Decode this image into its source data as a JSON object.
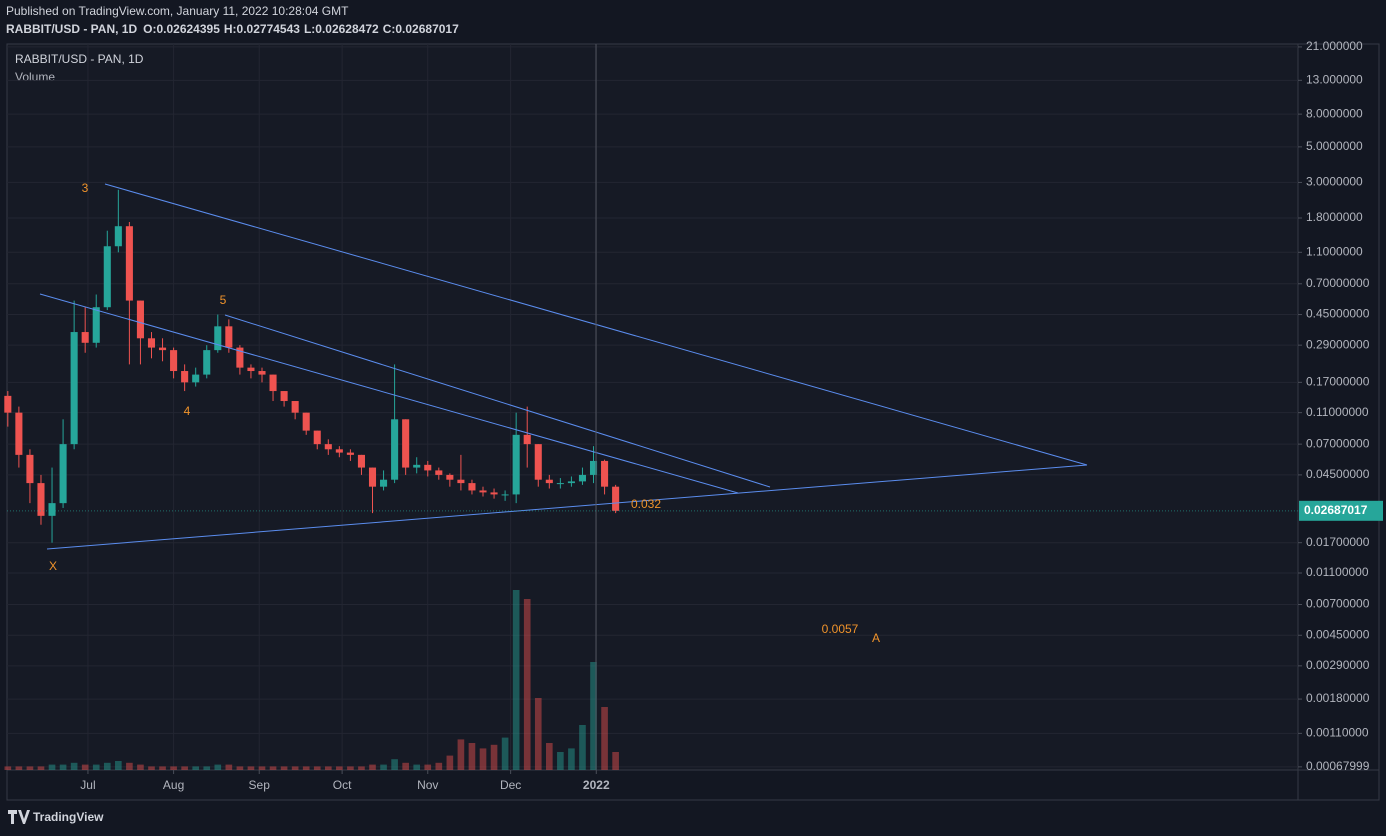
{
  "published": "Published on TradingView.com, January 11, 2022 10:28:04 GMT",
  "symbol": "RABBIT/USD - PAN, 1D",
  "ohlc": [
    {
      "label": "O:",
      "value": 0.02624395
    },
    {
      "label": "H:",
      "value": 0.02774543
    },
    {
      "label": "L:",
      "value": 0.02628472
    },
    {
      "label": "C:",
      "value": 0.02687017
    }
  ],
  "pane_title": "RABBIT/USD - PAN, 1D",
  "volume_title": "Volume",
  "brand": "TradingView",
  "chart_data": {
    "type": "candlestick",
    "log_scale": true,
    "grid": true,
    "up_color": "#26a69a",
    "down_color": "#ef5350",
    "line_color": "#5b8def",
    "annotation_color": "#f0932b",
    "x": [
      -29,
      -25,
      -21,
      -17,
      -13,
      -9,
      -5,
      -1,
      3,
      7,
      11,
      15,
      19,
      23,
      27,
      31,
      35,
      39,
      43,
      47,
      51,
      55,
      59,
      63,
      67,
      71,
      75,
      79,
      83,
      87,
      91,
      95,
      99,
      103,
      107,
      111,
      115,
      119,
      123,
      127,
      131,
      135,
      139,
      143,
      147,
      151,
      155,
      159,
      163,
      167,
      171,
      175,
      179,
      183,
      187,
      191
    ],
    "open": [
      0.14,
      0.11,
      0.06,
      0.04,
      0.025,
      0.03,
      0.07,
      0.35,
      0.3,
      0.5,
      1.2,
      1.6,
      0.55,
      0.32,
      0.28,
      0.27,
      0.2,
      0.17,
      0.19,
      0.27,
      0.38,
      0.28,
      0.21,
      0.2,
      0.19,
      0.15,
      0.13,
      0.11,
      0.085,
      0.07,
      0.065,
      0.062,
      0.06,
      0.05,
      0.038,
      0.042,
      0.1,
      0.05,
      0.052,
      0.048,
      0.045,
      0.042,
      0.04,
      0.036,
      0.035,
      0.034,
      0.034,
      0.08,
      0.07,
      0.042,
      0.04,
      0.04,
      0.041,
      0.045,
      0.055,
      0.038
    ],
    "high": [
      0.15,
      0.12,
      0.065,
      0.045,
      0.05,
      0.1,
      0.55,
      0.5,
      0.6,
      1.5,
      2.7,
      1.7,
      0.55,
      0.35,
      0.32,
      0.28,
      0.22,
      0.21,
      0.29,
      0.45,
      0.42,
      0.29,
      0.22,
      0.21,
      0.19,
      0.15,
      0.13,
      0.11,
      0.085,
      0.075,
      0.068,
      0.065,
      0.06,
      0.05,
      0.048,
      0.22,
      0.1,
      0.058,
      0.055,
      0.05,
      0.046,
      0.06,
      0.042,
      0.038,
      0.037,
      0.036,
      0.11,
      0.12,
      0.07,
      0.045,
      0.043,
      0.044,
      0.05,
      0.068,
      0.056,
      0.039
    ],
    "low": [
      0.09,
      0.05,
      0.03,
      0.022,
      0.017,
      0.028,
      0.065,
      0.26,
      0.28,
      0.48,
      1.1,
      0.22,
      0.22,
      0.24,
      0.23,
      0.18,
      0.15,
      0.16,
      0.18,
      0.26,
      0.26,
      0.19,
      0.18,
      0.17,
      0.13,
      0.12,
      0.1,
      0.08,
      0.065,
      0.06,
      0.058,
      0.055,
      0.045,
      0.026,
      0.036,
      0.04,
      0.045,
      0.046,
      0.044,
      0.042,
      0.038,
      0.036,
      0.034,
      0.033,
      0.032,
      0.031,
      0.03,
      0.05,
      0.038,
      0.037,
      0.037,
      0.038,
      0.039,
      0.04,
      0.034,
      0.026
    ],
    "close": [
      0.11,
      0.06,
      0.04,
      0.025,
      0.03,
      0.07,
      0.35,
      0.3,
      0.5,
      1.2,
      1.6,
      0.55,
      0.32,
      0.28,
      0.27,
      0.2,
      0.17,
      0.19,
      0.27,
      0.38,
      0.28,
      0.21,
      0.2,
      0.19,
      0.15,
      0.13,
      0.11,
      0.085,
      0.07,
      0.065,
      0.062,
      0.06,
      0.05,
      0.038,
      0.042,
      0.1,
      0.05,
      0.052,
      0.048,
      0.045,
      0.042,
      0.04,
      0.036,
      0.035,
      0.034,
      0.034,
      0.08,
      0.07,
      0.042,
      0.04,
      0.04,
      0.041,
      0.045,
      0.055,
      0.038,
      0.02687017
    ],
    "volume": [
      2,
      2,
      2,
      2,
      3,
      3,
      4,
      3,
      3,
      4,
      5,
      4,
      3,
      2,
      2,
      2,
      2,
      2,
      2,
      3,
      3,
      2,
      2,
      2,
      2,
      2,
      2,
      2,
      2,
      2,
      2,
      2,
      2,
      3,
      3,
      6,
      4,
      3,
      3,
      4,
      8,
      17,
      15,
      12,
      14,
      18,
      100,
      95,
      40,
      15,
      10,
      12,
      25,
      60,
      35,
      10
    ],
    "volume_lim": [
      0,
      100
    ],
    "xlim": [
      -29.3,
      438
    ],
    "xticks": [
      {
        "value": 0,
        "label": "Jul"
      },
      {
        "value": 31,
        "label": "Aug"
      },
      {
        "value": 62,
        "label": "Sep"
      },
      {
        "value": 92,
        "label": "Oct"
      },
      {
        "value": 123,
        "label": "Nov"
      },
      {
        "value": 153,
        "label": "Dec"
      },
      {
        "value": 184,
        "label": "2022"
      }
    ],
    "ylim": [
      0.00065,
      21.9
    ],
    "yticks": [
      {
        "value": 21,
        "label": "21.000000"
      },
      {
        "value": 13,
        "label": "13.000000"
      },
      {
        "value": 8,
        "label": "8.0000000"
      },
      {
        "value": 5,
        "label": "5.0000000"
      },
      {
        "value": 3,
        "label": "3.0000000"
      },
      {
        "value": 1.8,
        "label": "1.8000000"
      },
      {
        "value": 1.1,
        "label": "1.1000000"
      },
      {
        "value": 0.7,
        "label": "0.70000000"
      },
      {
        "value": 0.45,
        "label": "0.45000000"
      },
      {
        "value": 0.29,
        "label": "0.29000000"
      },
      {
        "value": 0.17,
        "label": "0.17000000"
      },
      {
        "value": 0.11,
        "label": "0.11000000"
      },
      {
        "value": 0.07,
        "label": "0.07000000"
      },
      {
        "value": 0.045,
        "label": "0.04500000"
      },
      {
        "value": 0.017,
        "label": "0.01700000"
      },
      {
        "value": 0.011,
        "label": "0.01100000"
      },
      {
        "value": 0.007,
        "label": "0.00700000"
      },
      {
        "value": 0.0045,
        "label": "0.00450000"
      },
      {
        "value": 0.0029,
        "label": "0.00290000"
      },
      {
        "value": 0.0018,
        "label": "0.00180000"
      },
      {
        "value": 0.0011,
        "label": "0.00110000"
      },
      0.00067999
    ],
    "annotations": [
      "3",
      "5",
      "4",
      "X",
      "0.032",
      "0.0057",
      "A"
    ]
  }
}
